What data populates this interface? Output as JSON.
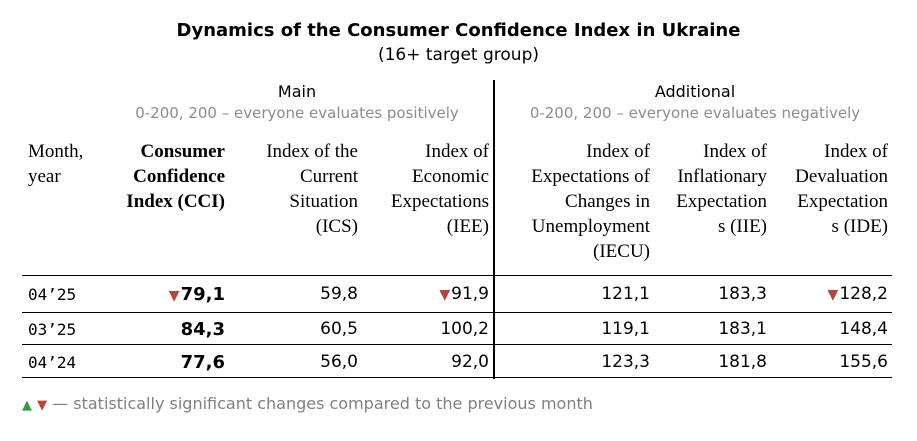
{
  "title": "Dynamics of the Consumer Confidence Index in Ukraine",
  "subtitle": "(16+ target group)",
  "sections": {
    "main": {
      "label": "Main",
      "note": "0-200, 200 – everyone evaluates positively"
    },
    "additional": {
      "label": "Additional",
      "note": "0-200, 200 – everyone evaluates negatively"
    }
  },
  "columns": {
    "month": [
      "Month,",
      "year"
    ],
    "cci": [
      "Consumer",
      "Confidence",
      "Index (CCI)"
    ],
    "ics": [
      "Index of the",
      "Current",
      "Situation",
      "(ICS)"
    ],
    "iee": [
      "Index of",
      "Economic",
      "Expectations",
      "(IEE)"
    ],
    "iecu": [
      "Index of",
      "Expectations of",
      "Changes in",
      "Unemployment",
      "(IECU)"
    ],
    "iie": [
      "Index of",
      "Inflationary",
      "Expectation",
      "s (IIE)"
    ],
    "ide": [
      "Index of",
      "Devaluation",
      "Expectation",
      "s (IDE)"
    ]
  },
  "rows": [
    {
      "month": "04’25",
      "cci": "79,1",
      "ics": "59,8",
      "iee": "91,9",
      "iecu": "121,1",
      "iie": "183,3",
      "ide": "128,2"
    },
    {
      "month": "03’25",
      "cci": "84,3",
      "ics": "60,5",
      "iee": "100,2",
      "iecu": "119,1",
      "iie": "183,1",
      "ide": "148,4"
    },
    {
      "month": "04’24",
      "cci": "77,6",
      "ics": "56,0",
      "iee": "92,0",
      "iecu": "123,3",
      "iie": "181,8",
      "ide": "155,6"
    }
  ],
  "significance": {
    "up_symbol": "▲",
    "down_symbol": "▼",
    "up_color": "#3a9a4a",
    "down_color": "#b5453a"
  },
  "legend": {
    "text": " — statistically significant changes compared to the previous month"
  }
}
